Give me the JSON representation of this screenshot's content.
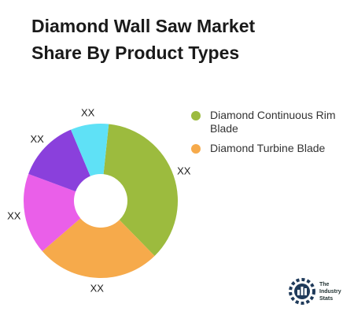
{
  "chart_data": {
    "type": "donut",
    "title": "Diamond Wall Saw Market Share By Product Types",
    "categories": [
      "Diamond Continuous Rim Blade",
      "Diamond Turbine Blade",
      null,
      null,
      null
    ],
    "values": [
      36,
      26,
      17,
      13,
      8
    ],
    "value_labels": [
      "XX",
      "XX",
      "XX",
      "XX",
      "XX"
    ],
    "colors": [
      "#9cbb3e",
      "#f6aa4b",
      "#ea5fe9",
      "#8a40dc",
      "#5fe1f6"
    ]
  },
  "logo": {
    "lines": [
      "The",
      "Industry",
      "Stats"
    ]
  }
}
